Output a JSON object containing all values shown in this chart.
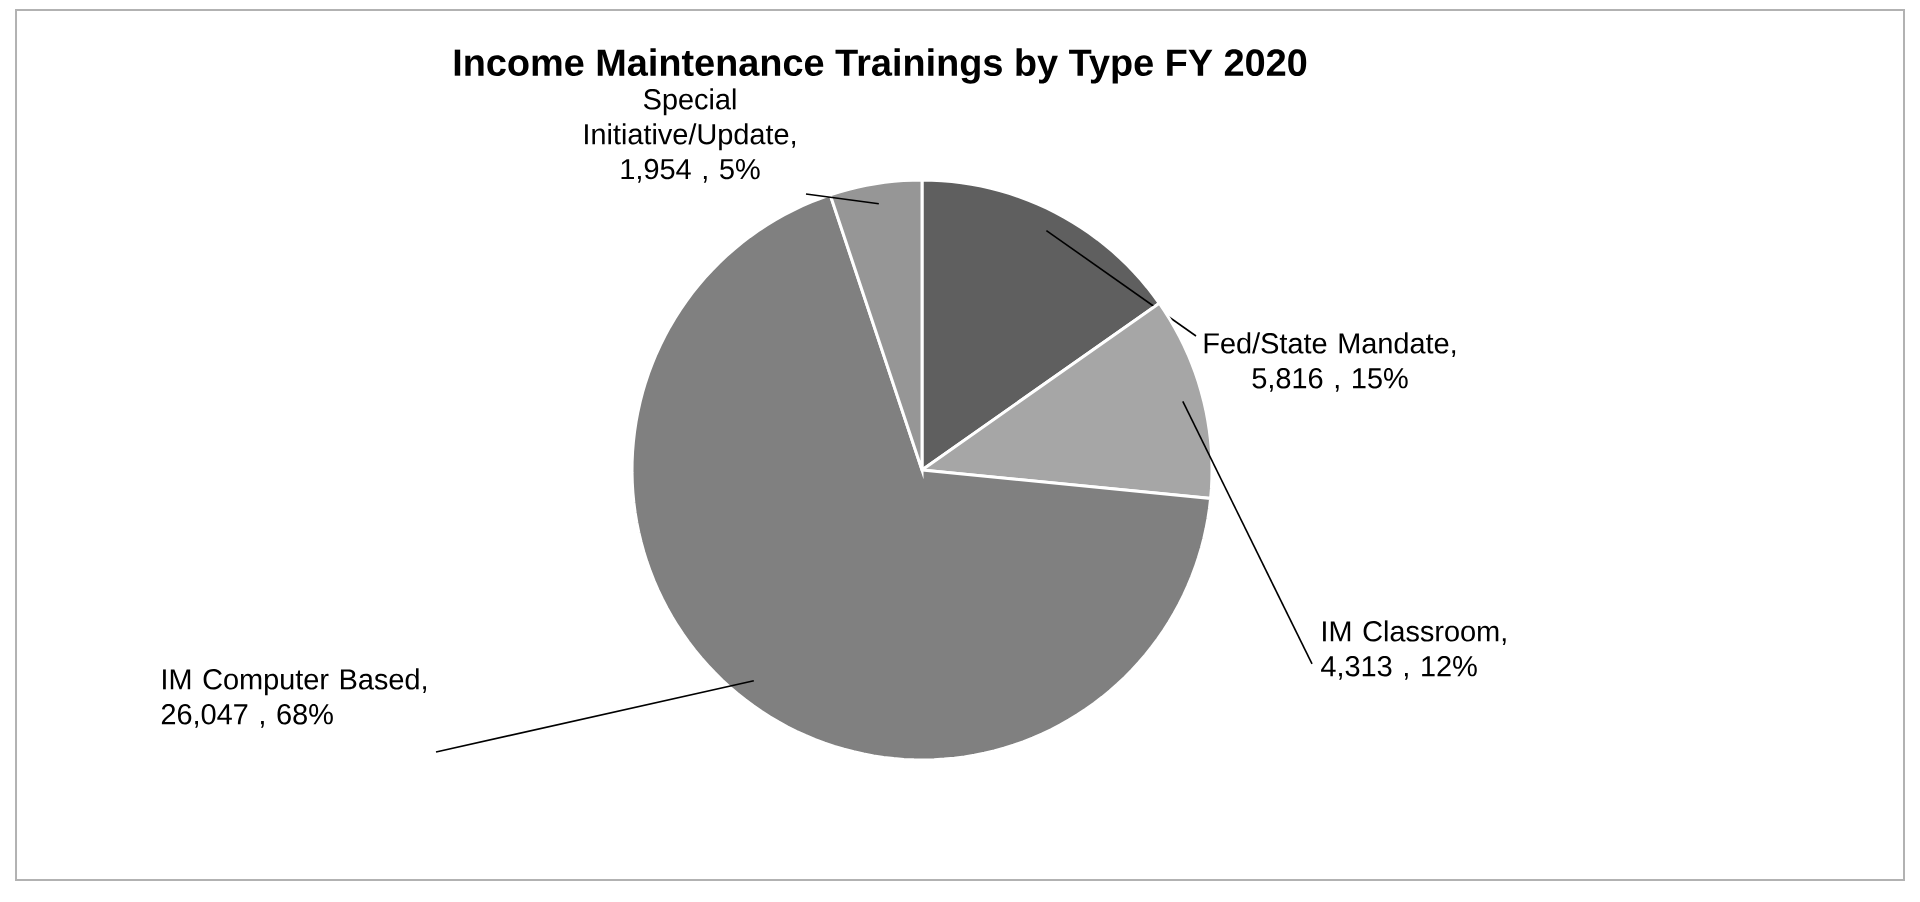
{
  "chart_data": {
    "type": "pie",
    "title": "Income Maintenance Trainings by Type FY 2020",
    "categories": [
      "Fed/State Mandate",
      "IM Classroom",
      "IM Computer Based",
      "Special Initiative/Update"
    ],
    "values": [
      5816,
      4313,
      26047,
      1954
    ],
    "value_labels": [
      ",  5,816 , 15%",
      ", 4,313 , 12%",
      ", 26,047 , 68%",
      ", 1,954 , 5%"
    ],
    "colors": [
      "#5f5f5f",
      "#a6a6a6",
      "#808080",
      "#969696"
    ]
  }
}
